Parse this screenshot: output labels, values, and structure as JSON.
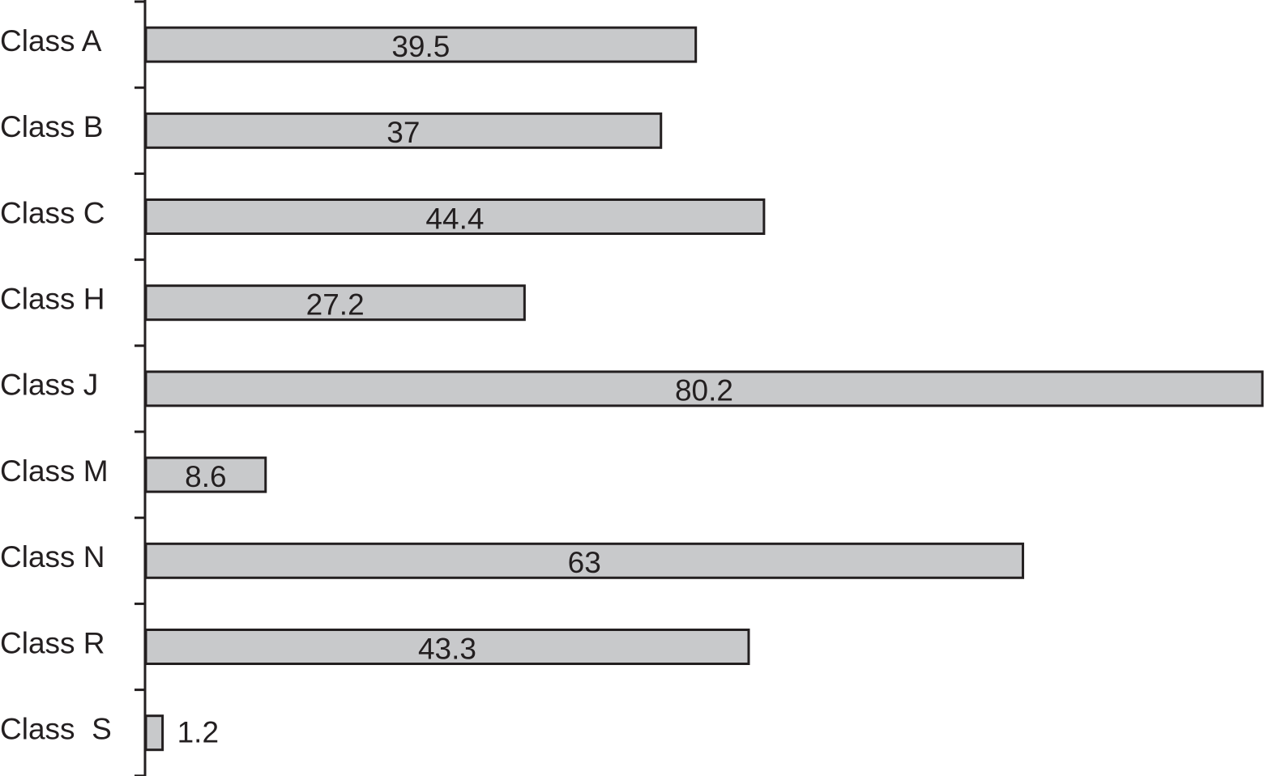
{
  "chart_data": {
    "type": "bar",
    "orientation": "horizontal",
    "categories": [
      "Class A",
      "Class B",
      "Class C",
      "Class H",
      "Class J",
      "Class M",
      "Class N",
      "Class R",
      "Class  S"
    ],
    "values": [
      39.5,
      37,
      44.4,
      27.2,
      80.2,
      8.6,
      63,
      43.3,
      1.2
    ],
    "color": "#c8c9cb"
  }
}
